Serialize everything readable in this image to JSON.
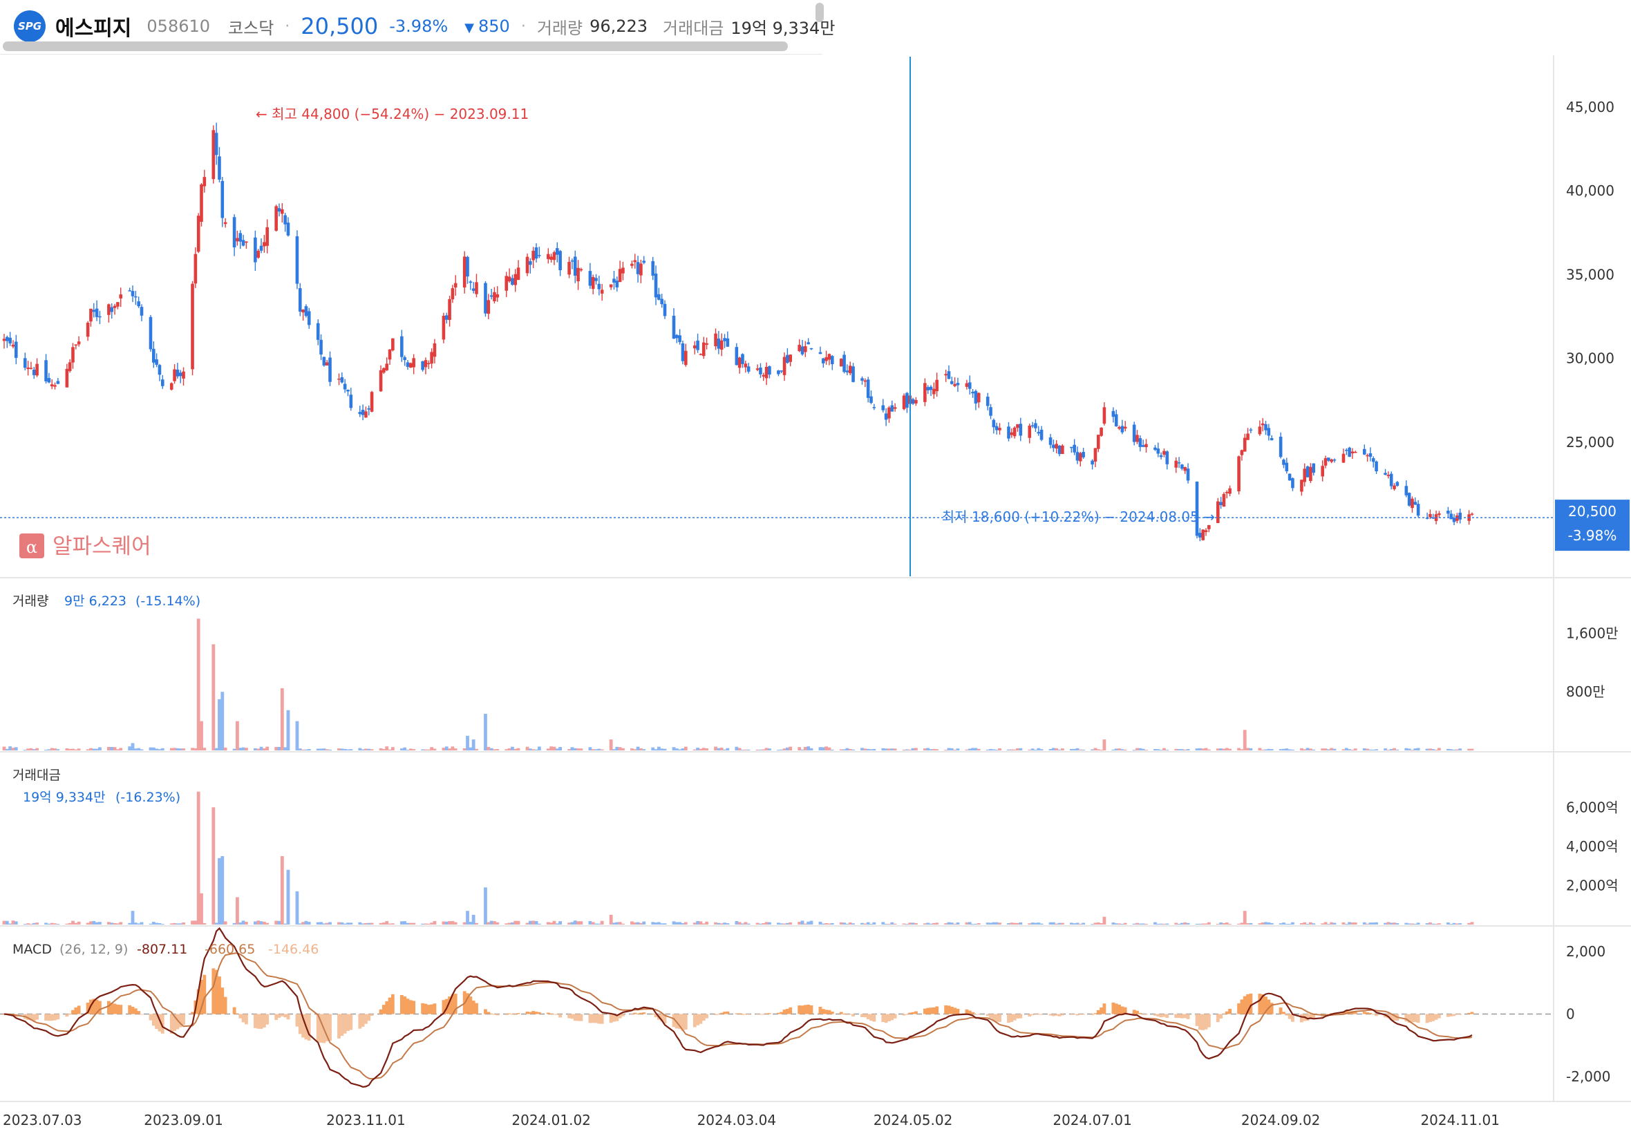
{
  "header": {
    "logo_text": "SPG",
    "name": "에스피지",
    "code": "058610",
    "market": "코스닥",
    "separator": "·",
    "price": "20,500",
    "change_pct": "-3.98%",
    "change_arrow": "▼",
    "change_amt": "850",
    "volume_label": "거래량",
    "volume_value": "96,223",
    "amount_label": "거래대금",
    "amount_value": "19억 9,334만"
  },
  "colors": {
    "up": "#e23d3d",
    "down": "#2f7ae0",
    "vol_up": "#f2a1a1",
    "vol_down": "#8fb8f2",
    "macd_line": "#7a1f12",
    "signal_line": "#c47a48",
    "osc_pos": "#f6a15e",
    "osc_neg": "#f5c29e",
    "accent": "#1f6fd8"
  },
  "chart_data": {
    "type": "candlestick",
    "date_range": [
      "2023-07-03",
      "2024-11-05"
    ],
    "x_ticks": [
      "2023.07.03",
      "2023.09.01",
      "2023.11.01",
      "2024.01.02",
      "2024.03.04",
      "2024.05.02",
      "2024.07.01",
      "2024.09.02",
      "2024.11.01"
    ],
    "price_panel": {
      "y_ticks": [
        45000,
        40000,
        35000,
        30000,
        25000
      ],
      "y_tick_labels": [
        "45,000",
        "40,000",
        "35,000",
        "30,000",
        "25,000"
      ],
      "ylim": [
        17000,
        48000
      ],
      "last_price": 20500,
      "last_price_label": "20,500",
      "last_change_label": "-3.98%",
      "high_annotation": "← 최고 44,800 (−54.24%) − 2023.09.11",
      "low_annotation": "최저 18,600 (+10.22%) − 2024.08.05 →",
      "watermark": "알파스퀘어",
      "path_keypoints": [
        [
          "2023-07-03",
          31000
        ],
        [
          "2023-07-20",
          28200
        ],
        [
          "2023-08-01",
          32500
        ],
        [
          "2023-08-15",
          34000
        ],
        [
          "2023-08-25",
          28500
        ],
        [
          "2023-09-01",
          29500
        ],
        [
          "2023-09-07",
          40000
        ],
        [
          "2023-09-11",
          43500
        ],
        [
          "2023-09-15",
          37500
        ],
        [
          "2023-09-25",
          36000
        ],
        [
          "2023-10-04",
          39500
        ],
        [
          "2023-10-10",
          33000
        ],
        [
          "2023-10-20",
          29000
        ],
        [
          "2023-10-31",
          26500
        ],
        [
          "2023-11-10",
          31000
        ],
        [
          "2023-11-20",
          29000
        ],
        [
          "2023-12-04",
          35500
        ],
        [
          "2023-12-11",
          33000
        ],
        [
          "2023-12-20",
          35000
        ],
        [
          "2023-12-28",
          36500
        ],
        [
          "2024-01-10",
          35200
        ],
        [
          "2024-01-20",
          34200
        ],
        [
          "2024-02-01",
          35500
        ],
        [
          "2024-02-08",
          33500
        ],
        [
          "2024-02-15",
          30000
        ],
        [
          "2024-02-26",
          31000
        ],
        [
          "2024-03-05",
          30000
        ],
        [
          "2024-03-15",
          29000
        ],
        [
          "2024-03-25",
          30800
        ],
        [
          "2024-04-05",
          30000
        ],
        [
          "2024-04-15",
          28500
        ],
        [
          "2024-04-22",
          26500
        ],
        [
          "2024-04-30",
          27500
        ],
        [
          "2024-05-10",
          28800
        ],
        [
          "2024-05-22",
          28000
        ],
        [
          "2024-06-01",
          25500
        ],
        [
          "2024-06-10",
          26000
        ],
        [
          "2024-06-20",
          24500
        ],
        [
          "2024-07-01",
          24000
        ],
        [
          "2024-07-05",
          27000
        ],
        [
          "2024-07-12",
          25500
        ],
        [
          "2024-07-22",
          24500
        ],
        [
          "2024-08-02",
          23000
        ],
        [
          "2024-08-05",
          19200
        ],
        [
          "2024-08-15",
          22000
        ],
        [
          "2024-08-22",
          25500
        ],
        [
          "2024-08-28",
          26000
        ],
        [
          "2024-09-05",
          22500
        ],
        [
          "2024-09-15",
          23800
        ],
        [
          "2024-09-25",
          24300
        ],
        [
          "2024-10-05",
          23500
        ],
        [
          "2024-10-20",
          20500
        ],
        [
          "2024-11-05",
          20500
        ]
      ]
    },
    "volume_panel": {
      "label": "거래량",
      "value_label": "9만 6,223",
      "change_label": "(-15.14%)",
      "y_ticks": [
        "1,600만",
        "800만"
      ],
      "ylim": [
        0,
        1850
      ],
      "spikes": [
        [
          "2023-08-15",
          100
        ],
        [
          "2023-09-06",
          1800
        ],
        [
          "2023-09-07",
          400
        ],
        [
          "2023-09-11",
          1450
        ],
        [
          "2023-09-13",
          700
        ],
        [
          "2023-09-14",
          800
        ],
        [
          "2023-09-19",
          400
        ],
        [
          "2023-10-04",
          850
        ],
        [
          "2023-10-06",
          550
        ],
        [
          "2023-10-09",
          400
        ],
        [
          "2023-12-05",
          200
        ],
        [
          "2023-12-07",
          150
        ],
        [
          "2023-12-11",
          500
        ],
        [
          "2024-01-22",
          150
        ],
        [
          "2024-07-05",
          150
        ],
        [
          "2024-08-21",
          280
        ]
      ]
    },
    "amount_panel": {
      "label": "거래대금",
      "value_label": "19억 9,334만",
      "change_label": "(-16.23%)",
      "y_ticks": [
        "6,000억",
        "4,000억",
        "2,000억"
      ],
      "ylim": [
        0,
        7000
      ],
      "spikes": [
        [
          "2023-08-15",
          700
        ],
        [
          "2023-09-06",
          6800
        ],
        [
          "2023-09-07",
          1600
        ],
        [
          "2023-09-11",
          6000
        ],
        [
          "2023-09-13",
          3400
        ],
        [
          "2023-09-14",
          3500
        ],
        [
          "2023-09-19",
          1400
        ],
        [
          "2023-10-04",
          3500
        ],
        [
          "2023-10-06",
          2800
        ],
        [
          "2023-10-09",
          1700
        ],
        [
          "2023-12-05",
          700
        ],
        [
          "2023-12-07",
          500
        ],
        [
          "2023-12-11",
          1900
        ],
        [
          "2024-01-22",
          500
        ],
        [
          "2024-07-05",
          400
        ],
        [
          "2024-08-21",
          700
        ]
      ]
    },
    "macd_panel": {
      "label": "MACD",
      "params": "(26, 12, 9)",
      "macd_value": "-807.11",
      "signal_value": "-660.65",
      "osc_value": "-146.46",
      "y_ticks": [
        2000,
        0,
        -2000
      ],
      "y_tick_labels": [
        "2,000",
        "0",
        "-2,000"
      ],
      "ylim": [
        -2700,
        2700
      ]
    }
  }
}
